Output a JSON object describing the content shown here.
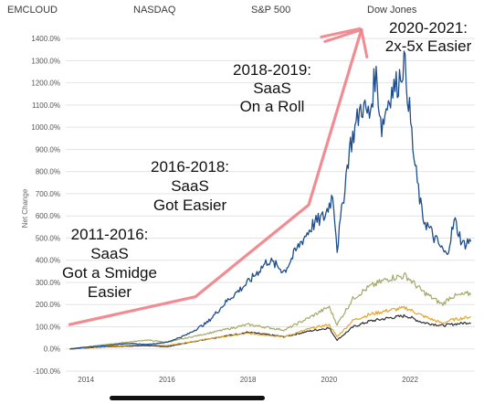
{
  "legend": {
    "items": [
      {
        "label": "EMCLOUD"
      },
      {
        "label": "NASDAQ"
      },
      {
        "label": "S&P 500"
      },
      {
        "label": "Dow Jones"
      }
    ]
  },
  "chart_data": {
    "type": "line",
    "ylabel": "Net Change",
    "y_tick_labels": [
      "-100.0%",
      "0.0%",
      "100.0%",
      "200.0%",
      "300.0%",
      "400.0%",
      "500.0%",
      "600.0%",
      "700.0%",
      "800.0%",
      "900.0%",
      "1000.0%",
      "1100.0%",
      "1200.0%",
      "1300.0%",
      "1400.0%"
    ],
    "ylim": [
      -100,
      1450
    ],
    "xlim": [
      2013.5,
      2023.6
    ],
    "x_tick_labels": [
      {
        "year": 2014,
        "label": "2014"
      },
      {
        "year": 2016,
        "label": "2016"
      },
      {
        "year": 2018,
        "label": "2018"
      },
      {
        "year": 2020,
        "label": "2020"
      },
      {
        "year": 2022,
        "label": "2022"
      }
    ],
    "grid": "horizontal",
    "series": [
      {
        "name": "EMCLOUD",
        "color": "#1f4e8c",
        "x": [
          2013.6,
          2014.0,
          2014.5,
          2015.0,
          2015.5,
          2016.0,
          2016.5,
          2017.0,
          2017.5,
          2018.0,
          2018.5,
          2018.9,
          2019.3,
          2019.6,
          2019.9,
          2020.1,
          2020.2,
          2020.5,
          2020.8,
          2021.0,
          2021.15,
          2021.3,
          2021.5,
          2021.7,
          2021.85,
          2021.95,
          2022.1,
          2022.3,
          2022.6,
          2022.9,
          2023.1,
          2023.3,
          2023.5
        ],
        "values": [
          0,
          8,
          15,
          25,
          20,
          30,
          65,
          120,
          220,
          300,
          400,
          350,
          480,
          560,
          600,
          700,
          450,
          900,
          1100,
          1050,
          1250,
          1000,
          1150,
          1200,
          1300,
          1150,
          850,
          600,
          500,
          420,
          580,
          470,
          490
        ]
      },
      {
        "name": "NASDAQ",
        "color": "#a4a96b",
        "x": [
          2013.6,
          2014.5,
          2015.5,
          2016.0,
          2017.0,
          2018.0,
          2018.9,
          2019.5,
          2020.0,
          2020.2,
          2020.6,
          2021.0,
          2021.5,
          2021.9,
          2022.3,
          2022.8,
          2023.0,
          2023.5
        ],
        "values": [
          0,
          20,
          40,
          30,
          70,
          110,
          85,
          140,
          190,
          110,
          230,
          280,
          320,
          330,
          260,
          200,
          235,
          250
        ]
      },
      {
        "name": "S&P 500",
        "color": "#e0a630",
        "x": [
          2013.6,
          2014.5,
          2015.5,
          2016.0,
          2017.0,
          2018.0,
          2018.9,
          2019.5,
          2020.0,
          2020.2,
          2020.6,
          2021.0,
          2021.5,
          2021.9,
          2022.3,
          2022.8,
          2023.0,
          2023.5
        ],
        "values": [
          0,
          12,
          20,
          15,
          45,
          70,
          55,
          90,
          110,
          55,
          130,
          155,
          175,
          185,
          150,
          115,
          130,
          145
        ]
      },
      {
        "name": "Dow Jones",
        "color": "#2e2e2e",
        "x": [
          2013.6,
          2014.5,
          2015.5,
          2016.0,
          2017.0,
          2018.0,
          2018.9,
          2019.5,
          2020.0,
          2020.2,
          2020.6,
          2021.0,
          2021.5,
          2021.9,
          2022.3,
          2022.8,
          2023.0,
          2023.5
        ],
        "values": [
          0,
          10,
          15,
          10,
          45,
          75,
          55,
          80,
          95,
          40,
          100,
          125,
          140,
          150,
          120,
          105,
          110,
          120
        ]
      }
    ],
    "trend_arrow": {
      "color": "#ee7f86",
      "x": [
        2013.6,
        2016.7,
        2019.5,
        2020.8
      ],
      "values": [
        110,
        235,
        650,
        1440
      ]
    },
    "annotations": [
      {
        "lines": [
          "2011-2016:",
          "SaaS",
          "Got a Smidge",
          "Easier"
        ]
      },
      {
        "lines": [
          "2016-2018:",
          "SaaS",
          "Got Easier"
        ]
      },
      {
        "lines": [
          "2018-2019:",
          "SaaS",
          "On a Roll"
        ]
      },
      {
        "lines": [
          "2020-2021:",
          "2x-5x Easier"
        ]
      }
    ]
  }
}
